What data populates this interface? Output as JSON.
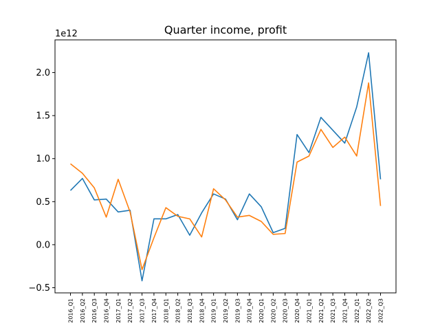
{
  "chart_data": {
    "type": "line",
    "title": "Quarter income, profit",
    "xlabel": "",
    "ylabel": "",
    "y_offset_label": "1e12",
    "ylim": [
      -0.56,
      2.38
    ],
    "yticks": [
      -0.5,
      0.0,
      0.5,
      1.0,
      1.5,
      2.0
    ],
    "ytick_labels": [
      "−0.5",
      "0.0",
      "0.5",
      "1.0",
      "1.5",
      "2.0"
    ],
    "grid": false,
    "categories": [
      "2016_Q1",
      "2016_Q2",
      "2016_Q3",
      "2016_Q4",
      "2017_Q1",
      "2017_Q2",
      "2017_Q3",
      "2017_Q4",
      "2018_Q1",
      "2018_Q2",
      "2018_Q3",
      "2018_Q4",
      "2019_Q1",
      "2019_Q2",
      "2019_Q3",
      "2019_Q4",
      "2020_Q1",
      "2020_Q2",
      "2020_Q3",
      "2020_Q4",
      "2021_Q1",
      "2021_Q2",
      "2021_Q3",
      "2021_Q4",
      "2022_Q1",
      "2022_Q2",
      "2022_Q3"
    ],
    "series": [
      {
        "color": "#1f77b4",
        "values": [
          0.63,
          0.77,
          0.52,
          0.53,
          0.38,
          0.4,
          -0.42,
          0.3,
          0.3,
          0.35,
          0.11,
          0.37,
          0.59,
          0.53,
          0.29,
          0.59,
          0.44,
          0.14,
          0.19,
          1.28,
          1.07,
          1.48,
          1.33,
          1.18,
          1.6,
          2.23,
          0.76
        ]
      },
      {
        "color": "#ff7f0e",
        "values": [
          0.94,
          0.83,
          0.66,
          0.32,
          0.76,
          0.38,
          -0.29,
          0.08,
          0.43,
          0.33,
          0.3,
          0.09,
          0.65,
          0.52,
          0.32,
          0.34,
          0.27,
          0.12,
          0.13,
          0.96,
          1.03,
          1.34,
          1.13,
          1.25,
          1.03,
          1.88,
          0.45
        ]
      }
    ]
  }
}
